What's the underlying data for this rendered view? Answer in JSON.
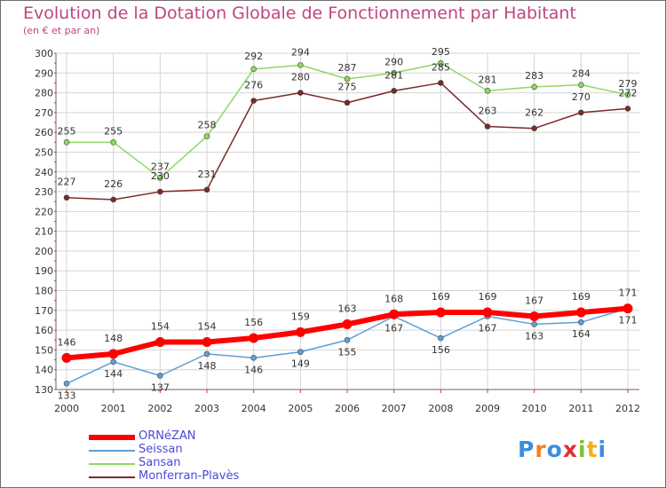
{
  "chart_data": {
    "type": "line",
    "title": "Evolution de la Dotation Globale de Fonctionnement par Habitant",
    "subtitle": "(en € et par an)",
    "xlabel": "",
    "ylabel": "",
    "ylim": [
      130,
      300
    ],
    "yticks": [
      130,
      140,
      150,
      160,
      170,
      180,
      190,
      200,
      210,
      220,
      230,
      240,
      250,
      260,
      270,
      280,
      290,
      300
    ],
    "x": [
      "2000",
      "2001",
      "2002",
      "2003",
      "2004",
      "2005",
      "2006",
      "2007",
      "2008",
      "2009",
      "2010",
      "2011",
      "2012"
    ],
    "grid": true,
    "legend_position": "bottom-left",
    "series": [
      {
        "name": "ORNéZAN",
        "color": "#ff0000",
        "values": [
          146,
          148,
          154,
          154,
          156,
          159,
          163,
          168,
          169,
          169,
          167,
          169,
          171
        ]
      },
      {
        "name": "Seissan",
        "color": "#5f9fd5",
        "values": [
          133,
          144,
          137,
          148,
          146,
          149,
          155,
          167,
          156,
          167,
          163,
          164,
          171
        ]
      },
      {
        "name": "Sansan",
        "color": "#8fd860",
        "values": [
          255,
          255,
          237,
          258,
          292,
          294,
          287,
          290,
          295,
          281,
          283,
          284,
          279
        ]
      },
      {
        "name": "Monferran-Plavès",
        "color": "#7a2a2a",
        "values": [
          227,
          226,
          230,
          231,
          276,
          280,
          275,
          281,
          285,
          263,
          262,
          270,
          272
        ]
      }
    ]
  },
  "logo": {
    "text": "Proxiti",
    "letters": [
      "P",
      "r",
      "o",
      "x",
      "i",
      "t",
      "i"
    ],
    "colors": [
      "#3a8ee0",
      "#f08020",
      "#3a8ee0",
      "#e03030",
      "#80c030",
      "#f0b020",
      "#3a8ee0"
    ]
  }
}
